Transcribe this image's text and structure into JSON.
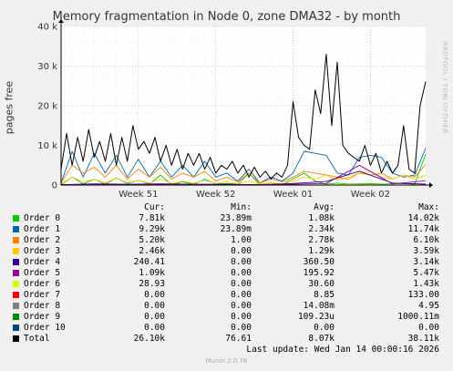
{
  "chart_data": {
    "type": "line",
    "title": "Memory fragmentation in Node 0, zone DMA32 - by month",
    "ylabel": "pages free",
    "ylim": [
      0,
      40000
    ],
    "yticks": [
      "0",
      "10 k",
      "20 k",
      "30 k",
      "40 k"
    ],
    "xticks": [
      "Week 51",
      "Week 52",
      "Week 01",
      "Week 02"
    ],
    "x_range_days": [
      0,
      33
    ],
    "xtick_days": [
      7,
      14,
      21,
      28
    ],
    "grid": true,
    "series": [
      {
        "name": "Order 0",
        "color": "#00cc00",
        "x": [
          0,
          1,
          2,
          3,
          4,
          5,
          6,
          7,
          8,
          9,
          10,
          11,
          12,
          13,
          14,
          15,
          16,
          17,
          18,
          19,
          20,
          21,
          22,
          23,
          24,
          25,
          26,
          27,
          28,
          29,
          30,
          31,
          32,
          33
        ],
        "values": [
          100,
          2000,
          300,
          1500,
          200,
          1800,
          400,
          1200,
          300,
          2500,
          100,
          800,
          200,
          1500,
          300,
          400,
          200,
          3000,
          100,
          600,
          200,
          1500,
          3000,
          1000,
          200,
          500,
          200,
          300,
          400,
          200,
          300,
          400,
          200,
          7800
        ]
      },
      {
        "name": "Order 1",
        "color": "#0066b3",
        "x": [
          0,
          1,
          2,
          3,
          4,
          5,
          6,
          7,
          8,
          9,
          10,
          11,
          12,
          13,
          14,
          15,
          16,
          17,
          18,
          19,
          20,
          21,
          22,
          23,
          24,
          25,
          26,
          27,
          28,
          29,
          30,
          31,
          32,
          33
        ],
        "values": [
          500,
          8500,
          2000,
          8000,
          3000,
          7500,
          2000,
          6500,
          2000,
          6000,
          2000,
          5000,
          2000,
          6000,
          2000,
          3000,
          1000,
          4000,
          500,
          2000,
          1000,
          3000,
          8500,
          8000,
          7500,
          3000,
          2500,
          7000,
          7500,
          7000,
          3000,
          2000,
          2500,
          9300
        ]
      },
      {
        "name": "Order 2",
        "color": "#ff8000",
        "x": [
          0,
          1,
          2,
          3,
          4,
          5,
          6,
          7,
          8,
          9,
          10,
          11,
          12,
          13,
          14,
          15,
          16,
          17,
          18,
          19,
          20,
          21,
          22,
          23,
          24,
          25,
          26,
          27,
          28,
          29,
          30,
          31,
          32,
          33
        ],
        "values": [
          500,
          5000,
          3000,
          4500,
          2000,
          5000,
          1500,
          4000,
          2000,
          4500,
          1500,
          3000,
          2000,
          3500,
          1000,
          2000,
          800,
          3000,
          500,
          1500,
          800,
          2000,
          3500,
          3000,
          2500,
          2000,
          1500,
          3000,
          2500,
          3000,
          1500,
          2500,
          2000,
          5200
        ]
      },
      {
        "name": "Order 3",
        "color": "#ffcc00",
        "x": [
          0,
          1,
          2,
          3,
          4,
          5,
          6,
          7,
          8,
          9,
          10,
          11,
          12,
          13,
          14,
          15,
          16,
          17,
          18,
          19,
          20,
          21,
          22,
          23,
          24,
          25,
          26,
          27,
          28,
          29,
          30,
          31,
          32,
          33
        ],
        "values": [
          300,
          2000,
          800,
          1500,
          500,
          1800,
          600,
          1200,
          500,
          1500,
          400,
          1000,
          500,
          1200,
          400,
          800,
          300,
          1000,
          200,
          600,
          300,
          800,
          2000,
          1500,
          2500,
          1200,
          2000,
          3000,
          3500,
          2000,
          1500,
          2500,
          1500,
          2460
        ]
      },
      {
        "name": "Order 4",
        "color": "#330099",
        "x": [
          0,
          3,
          6,
          9,
          12,
          15,
          18,
          21,
          24,
          27,
          30,
          33
        ],
        "values": [
          100,
          300,
          200,
          300,
          200,
          200,
          100,
          400,
          900,
          3500,
          500,
          240
        ]
      },
      {
        "name": "Order 5",
        "color": "#990099",
        "x": [
          0,
          3,
          6,
          9,
          12,
          15,
          18,
          21,
          24,
          27,
          30,
          33
        ],
        "values": [
          50,
          150,
          80,
          120,
          100,
          80,
          60,
          200,
          400,
          5000,
          300,
          1090
        ]
      },
      {
        "name": "Order 6",
        "color": "#ccff00",
        "x": [
          0,
          3,
          6,
          9,
          12,
          15,
          18,
          21,
          24,
          27,
          30,
          33
        ],
        "values": [
          0,
          20,
          10,
          20,
          10,
          10,
          0,
          30,
          40,
          150,
          20,
          29
        ]
      },
      {
        "name": "Order 7",
        "color": "#ff0000",
        "x": [
          0,
          33
        ],
        "values": [
          0,
          0
        ]
      },
      {
        "name": "Order 8",
        "color": "#808080",
        "x": [
          0,
          33
        ],
        "values": [
          0,
          0
        ]
      },
      {
        "name": "Order 9",
        "color": "#008f00",
        "x": [
          0,
          33
        ],
        "values": [
          0,
          0
        ]
      },
      {
        "name": "Order 10",
        "color": "#00487d",
        "x": [
          0,
          33
        ],
        "values": [
          0,
          0
        ]
      },
      {
        "name": "Total",
        "color": "#000000",
        "x": [
          0,
          0.5,
          1,
          1.5,
          2,
          2.5,
          3,
          3.5,
          4,
          4.5,
          5,
          5.5,
          6,
          6.5,
          7,
          7.5,
          8,
          8.5,
          9,
          9.5,
          10,
          10.5,
          11,
          11.5,
          12,
          12.5,
          13,
          13.5,
          14,
          14.5,
          15,
          15.5,
          16,
          16.5,
          17,
          17.5,
          18,
          18.5,
          19,
          19.5,
          20,
          20.5,
          21,
          21.5,
          22,
          22.5,
          23,
          23.5,
          24,
          24.5,
          25,
          25.5,
          26,
          26.5,
          27,
          27.5,
          28,
          28.5,
          29,
          29.5,
          30,
          30.5,
          31,
          31.5,
          32,
          32.5,
          33
        ],
        "values": [
          4000,
          13000,
          5000,
          12000,
          6000,
          14000,
          7000,
          11000,
          6000,
          13000,
          5000,
          12000,
          6000,
          15000,
          9000,
          11000,
          8000,
          12000,
          6000,
          10000,
          5000,
          9000,
          4000,
          8000,
          5000,
          8000,
          4000,
          7000,
          3000,
          5000,
          4000,
          6000,
          3000,
          5000,
          2000,
          4500,
          2000,
          3500,
          1500,
          3000,
          2000,
          5000,
          21000,
          12000,
          10000,
          9000,
          24000,
          18000,
          33000,
          15000,
          31000,
          10000,
          8000,
          7000,
          6000,
          10000,
          5000,
          8000,
          3000,
          6000,
          3000,
          5000,
          15000,
          4000,
          3000,
          20000,
          26100
        ]
      }
    ],
    "legend_header": {
      "cur": "Cur:",
      "min": "Min:",
      "avg": "Avg:",
      "max": "Max:"
    },
    "legend": [
      {
        "name": "Order 0",
        "color": "#00cc00",
        "cur": "7.81k",
        "min": "23.89m",
        "avg": "1.08k",
        "max": "14.02k"
      },
      {
        "name": "Order 1",
        "color": "#0066b3",
        "cur": "9.29k",
        "min": "23.89m",
        "avg": "2.34k",
        "max": "11.74k"
      },
      {
        "name": "Order 2",
        "color": "#ff8000",
        "cur": "5.20k",
        "min": "1.00",
        "avg": "2.78k",
        "max": "6.10k"
      },
      {
        "name": "Order 3",
        "color": "#ffcc00",
        "cur": "2.46k",
        "min": "0.00",
        "avg": "1.29k",
        "max": "3.59k"
      },
      {
        "name": "Order 4",
        "color": "#330099",
        "cur": "240.41",
        "min": "0.00",
        "avg": "360.50",
        "max": "3.14k"
      },
      {
        "name": "Order 5",
        "color": "#990099",
        "cur": "1.09k",
        "min": "0.00",
        "avg": "195.92",
        "max": "5.47k"
      },
      {
        "name": "Order 6",
        "color": "#ccff00",
        "cur": "28.93",
        "min": "0.00",
        "avg": "30.60",
        "max": "1.43k"
      },
      {
        "name": "Order 7",
        "color": "#ff0000",
        "cur": "0.00",
        "min": "0.00",
        "avg": "8.85",
        "max": "133.00"
      },
      {
        "name": "Order 8",
        "color": "#808080",
        "cur": "0.00",
        "min": "0.00",
        "avg": "14.08m",
        "max": "4.95"
      },
      {
        "name": "Order 9",
        "color": "#008f00",
        "cur": "0.00",
        "min": "0.00",
        "avg": "109.23u",
        "max": "1000.11m"
      },
      {
        "name": "Order 10",
        "color": "#00487d",
        "cur": "0.00",
        "min": "0.00",
        "avg": "0.00",
        "max": "0.00"
      },
      {
        "name": "Total",
        "color": "#000000",
        "cur": "26.10k",
        "min": "76.61",
        "avg": "8.07k",
        "max": "38.11k"
      }
    ]
  },
  "watermark": "RRDTOOL / TOBI OETIKER",
  "last_update": "Last update: Wed Jan 14 00:00:16 2026",
  "footer": "Munin 2.0.76"
}
